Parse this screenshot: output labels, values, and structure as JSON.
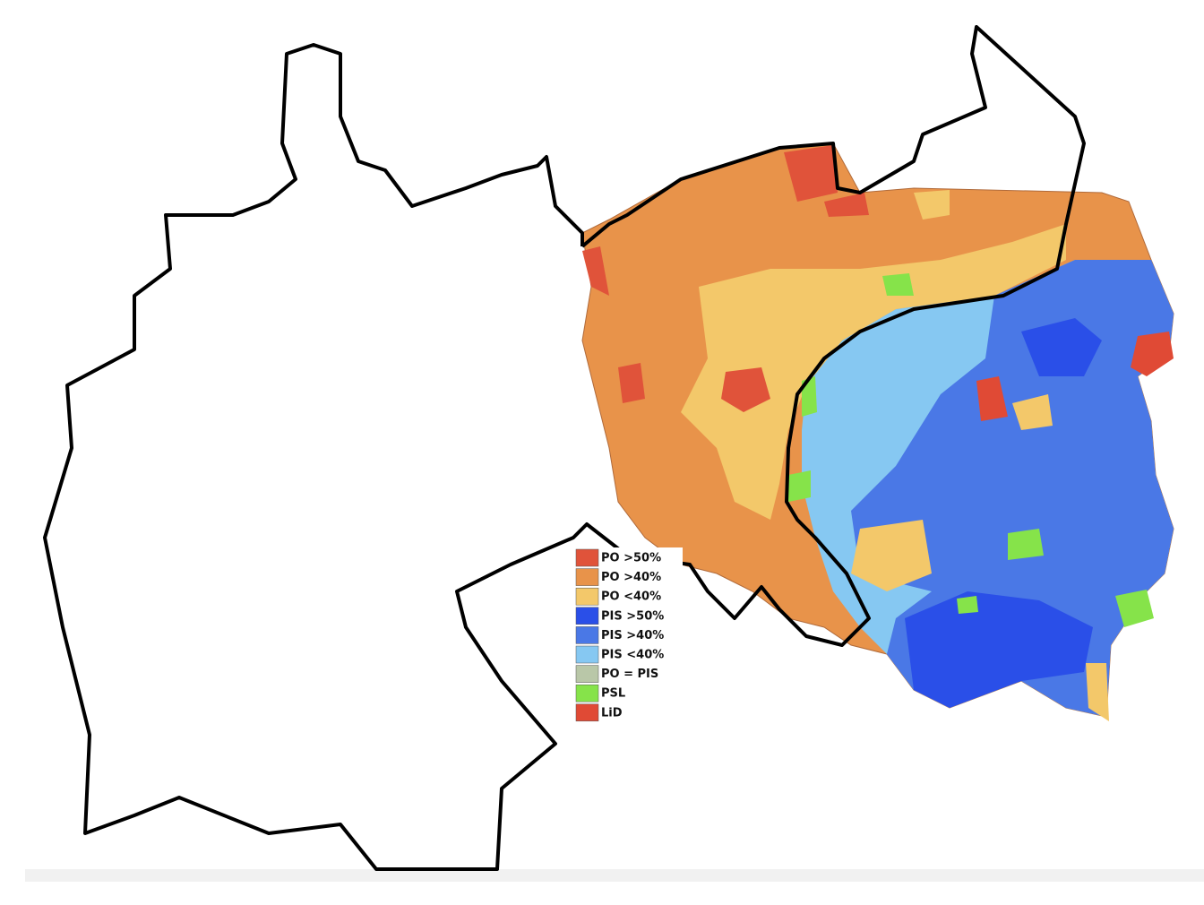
{
  "legend": {
    "items": [
      {
        "label": "PO >50%",
        "color": "#e0533a"
      },
      {
        "label": "PO >40%",
        "color": "#e8934a"
      },
      {
        "label": "PO <40%",
        "color": "#f3c86a"
      },
      {
        "label": "PIS >50%",
        "color": "#2a4fe8"
      },
      {
        "label": "PIS >40%",
        "color": "#4a78e6"
      },
      {
        "label": "PIS <40%",
        "color": "#86c8f2"
      },
      {
        "label": "PO = PIS",
        "color": "#b9c7a8"
      },
      {
        "label": "PSL",
        "color": "#86e34a"
      },
      {
        "label": "LiD",
        "color": "#e04a35"
      }
    ]
  }
}
